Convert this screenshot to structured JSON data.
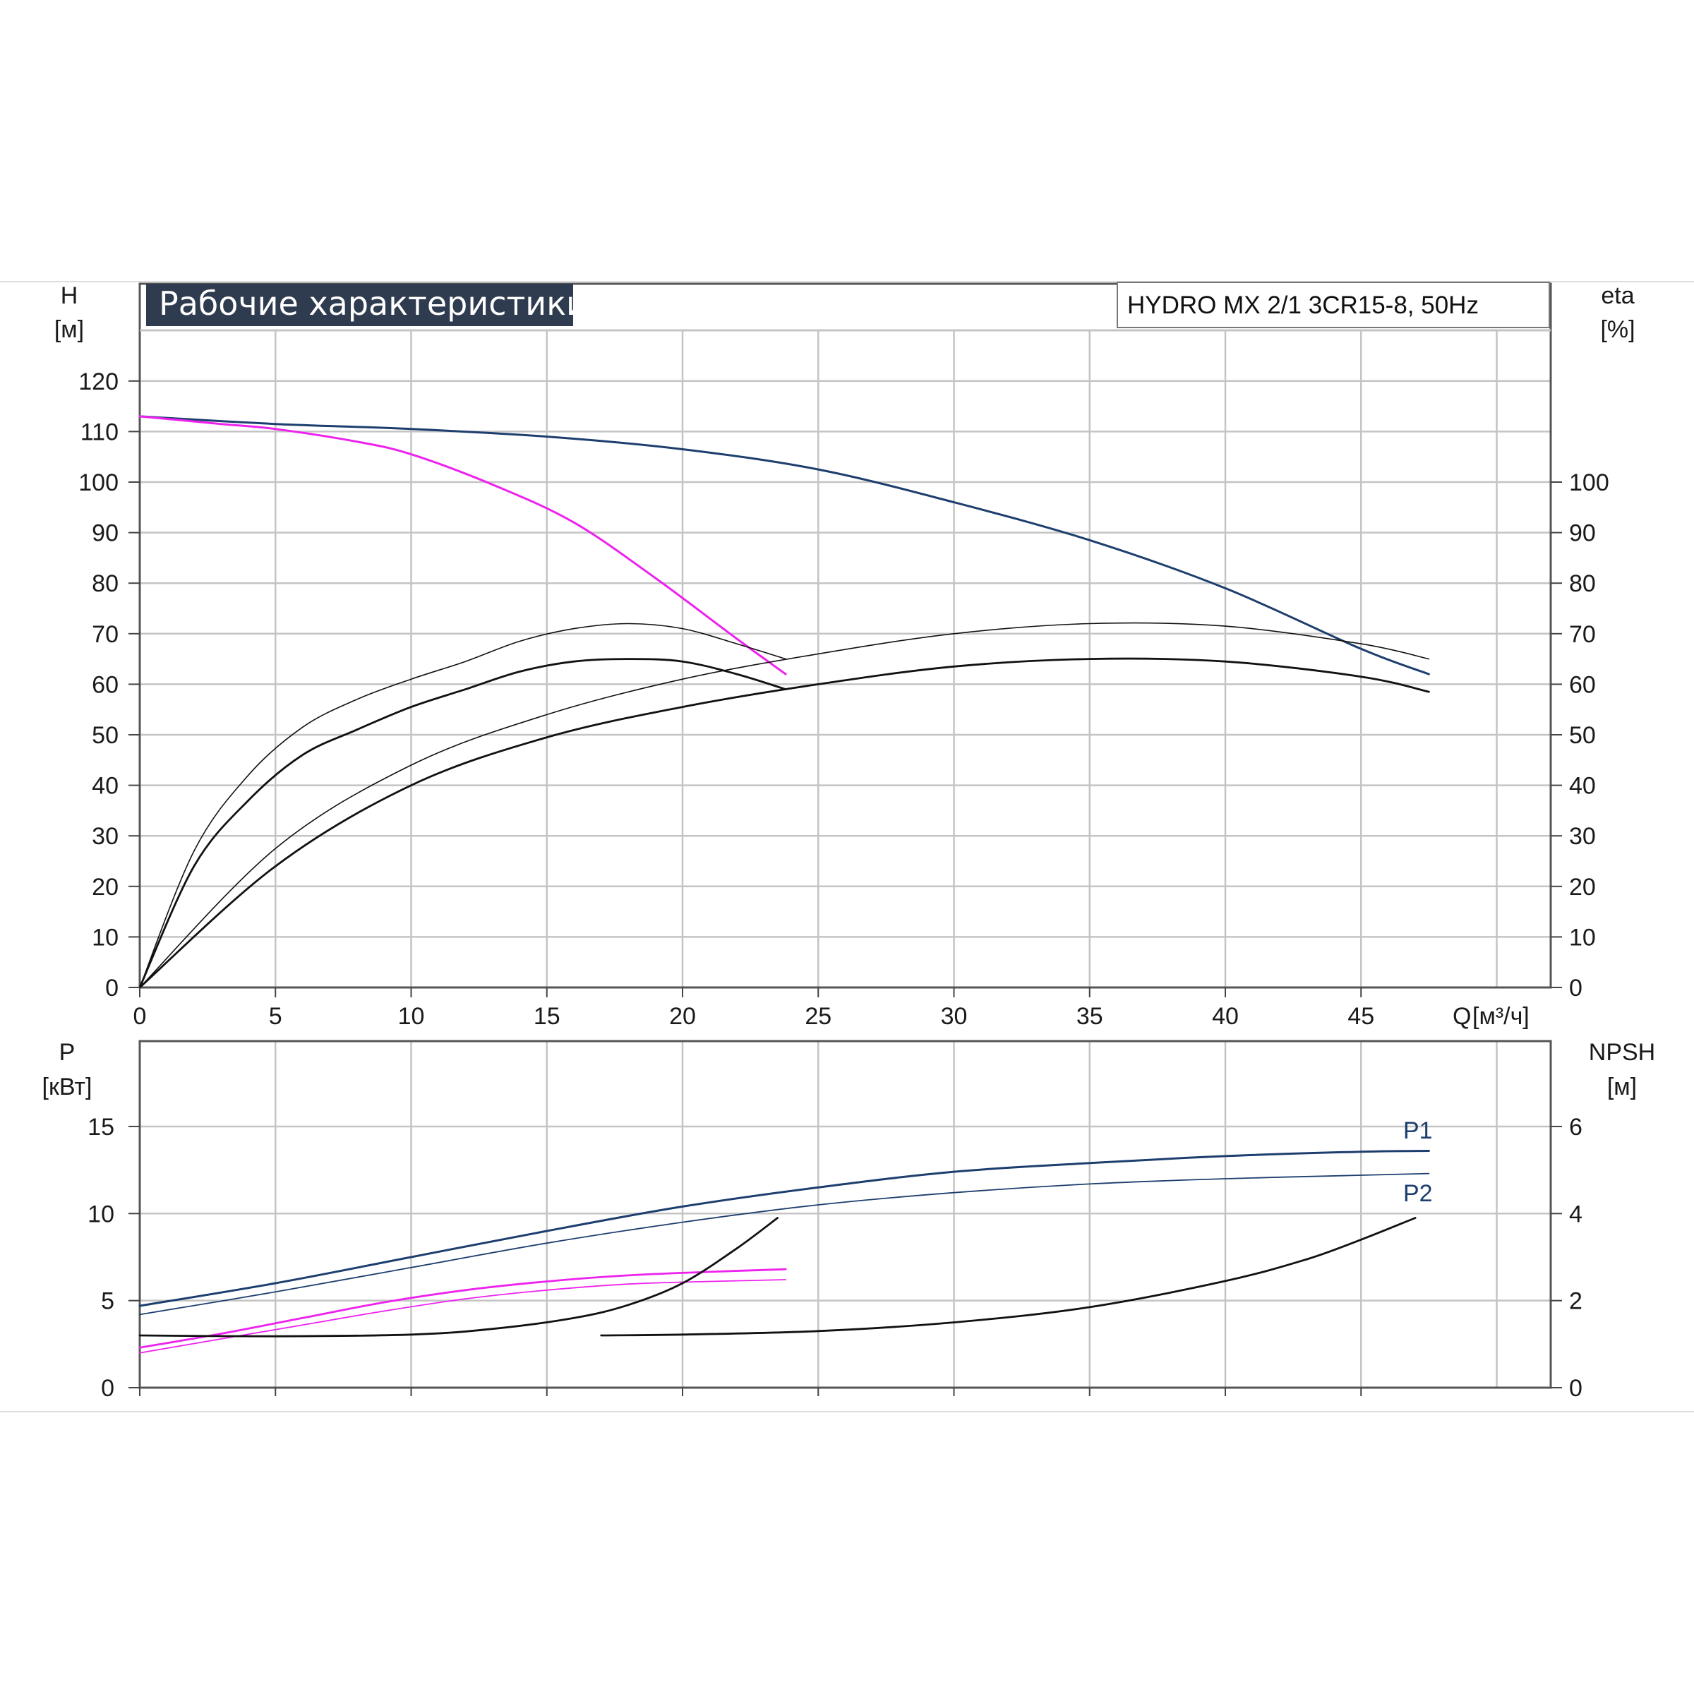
{
  "header": {
    "title": "Рабочие характеристики",
    "model": "HYDRO MX 2/1 3CR15-8, 50Hz"
  },
  "colors": {
    "navy": "#1d3e6e",
    "magenta": "#ee22ee",
    "black": "#111111",
    "grid": "#c4c4c4",
    "title_bg": "#2f3b4e"
  },
  "chart_data": [
    {
      "type": "line",
      "panel": "head-efficiency",
      "title": "Рабочие характеристики",
      "subtitle": "HYDRO MX 2/1 3CR15-8, 50Hz",
      "ylabel": "H",
      "yunit": "[м]",
      "y2label": "eta",
      "y2unit": "[%]",
      "xlabel": "Q",
      "xunit": "[м³/ч]",
      "xlim": [
        0,
        52
      ],
      "ylim": [
        0,
        140
      ],
      "xticks": [
        0,
        5,
        10,
        15,
        20,
        25,
        30,
        35,
        40,
        45
      ],
      "yticks": [
        0,
        10,
        20,
        30,
        40,
        50,
        60,
        70,
        80,
        90,
        100,
        110,
        120
      ],
      "y2ticks": [
        0,
        10,
        20,
        30,
        40,
        50,
        60,
        70,
        80,
        90,
        100
      ],
      "grid": true,
      "series": [
        {
          "kind": "head",
          "color": "navy",
          "width": 3,
          "x": [
            0,
            5,
            10,
            15,
            20,
            25,
            30,
            35,
            40,
            45,
            47.5
          ],
          "y": [
            113,
            111.5,
            110.5,
            109,
            106.5,
            102.5,
            96,
            88.5,
            79,
            67,
            62
          ]
        },
        {
          "kind": "head",
          "color": "magenta",
          "width": 3,
          "x": [
            0,
            3,
            5,
            8,
            10,
            13,
            16,
            19,
            22,
            23.8
          ],
          "y": [
            113,
            111.5,
            110.5,
            108,
            105.5,
            99.5,
            92,
            81,
            69,
            62
          ]
        },
        {
          "kind": "efficiency",
          "color": "black",
          "width": 1.6,
          "x": [
            0,
            2,
            4,
            6,
            8,
            10,
            12,
            14,
            16,
            18,
            20,
            22,
            23.8
          ],
          "y": [
            0,
            27,
            42,
            51.5,
            57,
            61,
            64.5,
            68.5,
            71,
            72,
            71,
            68,
            65
          ]
        },
        {
          "kind": "efficiency",
          "color": "black",
          "width": 2.8,
          "x": [
            0,
            2,
            4,
            6,
            8,
            10,
            12,
            14,
            16,
            18,
            20,
            22,
            23.8
          ],
          "y": [
            0,
            24,
            37,
            46,
            51,
            55.5,
            59,
            62.5,
            64.5,
            65,
            64.5,
            62,
            59
          ]
        },
        {
          "kind": "efficiency",
          "color": "black",
          "width": 1.6,
          "x": [
            0,
            5,
            10,
            15,
            20,
            25,
            30,
            35,
            40,
            45,
            47.5
          ],
          "y": [
            0,
            27.5,
            44,
            54,
            61,
            66,
            70,
            72,
            71.5,
            68,
            65
          ]
        },
        {
          "kind": "efficiency",
          "color": "black",
          "width": 2.8,
          "x": [
            0,
            5,
            10,
            15,
            20,
            25,
            30,
            35,
            40,
            45,
            47.5
          ],
          "y": [
            0,
            24,
            40,
            49.5,
            55.5,
            60,
            63.5,
            65,
            64.5,
            61.5,
            58.5
          ]
        }
      ]
    },
    {
      "type": "line",
      "panel": "power-npsh",
      "ylabel": "P",
      "yunit": "[кВт]",
      "y2label": "NPSH",
      "y2unit": "[м]",
      "xlim": [
        0,
        52
      ],
      "ylim": [
        0,
        20
      ],
      "y2lim": [
        0,
        8
      ],
      "xticks": [
        0,
        5,
        10,
        15,
        20,
        25,
        30,
        35,
        40,
        45
      ],
      "yticks": [
        0,
        5,
        10,
        15
      ],
      "y2ticks": [
        0,
        2,
        4,
        6
      ],
      "grid": true,
      "series": [
        {
          "name": "P1",
          "kind": "power",
          "axis": "left",
          "color": "navy",
          "width": 3,
          "x": [
            0,
            5,
            10,
            15,
            20,
            25,
            30,
            35,
            40,
            45,
            47.5
          ],
          "y": [
            4.7,
            6.0,
            7.5,
            9.0,
            10.4,
            11.5,
            12.4,
            12.9,
            13.3,
            13.55,
            13.6
          ]
        },
        {
          "name": "P2",
          "kind": "power",
          "axis": "left",
          "color": "navy",
          "width": 1.8,
          "x": [
            0,
            5,
            10,
            15,
            20,
            25,
            30,
            35,
            40,
            45,
            47.5
          ],
          "y": [
            4.2,
            5.5,
            6.9,
            8.3,
            9.5,
            10.5,
            11.2,
            11.7,
            12.0,
            12.2,
            12.3
          ]
        },
        {
          "kind": "power",
          "axis": "left",
          "color": "magenta",
          "width": 2.8,
          "x": [
            0,
            3,
            6,
            9,
            12,
            15,
            18,
            21,
            23.8
          ],
          "y": [
            2.3,
            3.1,
            4.0,
            4.9,
            5.6,
            6.1,
            6.45,
            6.65,
            6.8
          ]
        },
        {
          "kind": "power",
          "axis": "left",
          "color": "magenta",
          "width": 1.8,
          "x": [
            0,
            3,
            6,
            9,
            12,
            15,
            18,
            21,
            23.8
          ],
          "y": [
            2.0,
            2.8,
            3.6,
            4.4,
            5.1,
            5.6,
            5.95,
            6.1,
            6.2
          ]
        },
        {
          "kind": "npsh",
          "axis": "right",
          "color": "black",
          "width": 2.8,
          "x": [
            0,
            5,
            10,
            13,
            16,
            18,
            20,
            22,
            23.5
          ],
          "y": [
            1.2,
            1.18,
            1.22,
            1.35,
            1.6,
            1.9,
            2.4,
            3.2,
            3.9
          ]
        },
        {
          "kind": "npsh",
          "axis": "right",
          "color": "black",
          "width": 2.8,
          "x": [
            17,
            20,
            25,
            30,
            35,
            40,
            43,
            45,
            47
          ],
          "y": [
            1.2,
            1.22,
            1.3,
            1.5,
            1.85,
            2.45,
            2.95,
            3.4,
            3.9
          ]
        }
      ]
    }
  ]
}
